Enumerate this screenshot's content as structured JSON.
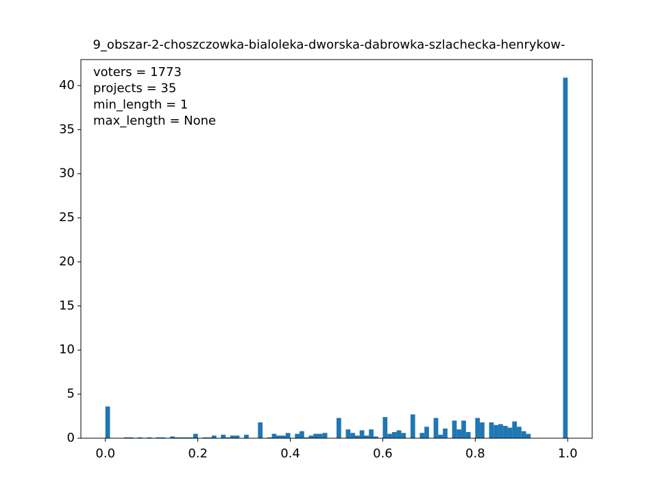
{
  "chart_data": {
    "type": "histogram",
    "title": "9_obszar-2-choszczowka-bialoleka-dworska-dabrowka-szlachecka-henrykow-",
    "annotations": [
      "voters = 1773",
      "projects = 35",
      "min_length = 1",
      "max_length = None"
    ],
    "color": "#1f77b4",
    "bins": [
      0,
      0.01,
      0.02,
      0.03,
      0.04,
      0.05,
      0.06,
      0.07,
      0.08,
      0.09,
      0.1,
      0.11,
      0.12,
      0.13,
      0.14,
      0.15,
      0.16,
      0.17,
      0.18,
      0.19,
      0.2,
      0.21,
      0.22,
      0.23,
      0.24,
      0.25,
      0.26,
      0.27,
      0.28,
      0.29,
      0.3,
      0.31,
      0.32,
      0.33,
      0.34,
      0.35,
      0.36,
      0.37,
      0.38,
      0.39,
      0.4,
      0.41,
      0.42,
      0.43,
      0.44,
      0.45,
      0.46,
      0.47,
      0.48,
      0.49,
      0.5,
      0.51,
      0.52,
      0.53,
      0.54,
      0.55,
      0.56,
      0.57,
      0.58,
      0.59,
      0.6,
      0.61,
      0.62,
      0.63,
      0.64,
      0.65,
      0.66,
      0.67,
      0.68,
      0.69,
      0.7,
      0.71,
      0.72,
      0.73,
      0.74,
      0.75,
      0.76,
      0.77,
      0.78,
      0.79,
      0.8,
      0.81,
      0.82,
      0.83,
      0.84,
      0.85,
      0.86,
      0.87,
      0.88,
      0.89,
      0.9,
      0.91,
      0.92,
      0.93,
      0.94,
      0.95,
      0.96,
      0.97,
      0.98,
      0.99,
      1
    ],
    "values": [
      3.6,
      0,
      0,
      0,
      0.1,
      0.1,
      0,
      0.1,
      0,
      0.1,
      0,
      0.1,
      0.1,
      0,
      0.2,
      0.1,
      0.1,
      0.1,
      0.1,
      0.5,
      0,
      0.1,
      0.1,
      0.3,
      0,
      0.4,
      0.1,
      0.3,
      0.3,
      0,
      0.4,
      0,
      0,
      1.8,
      0,
      0.1,
      0.5,
      0.3,
      0.3,
      0.6,
      0,
      0.5,
      0.8,
      0.1,
      0.3,
      0.5,
      0.5,
      0.6,
      0,
      0,
      2.3,
      0,
      1.0,
      0.6,
      0.3,
      0.9,
      0.3,
      1.0,
      0.2,
      0,
      2.4,
      0.5,
      0.7,
      0.9,
      0.6,
      0,
      2.7,
      0,
      0.6,
      1.3,
      0,
      2.3,
      0.4,
      1.1,
      0,
      2.0,
      1.0,
      2.0,
      0.7,
      0,
      2.3,
      1.8,
      0,
      1.8,
      1.5,
      1.6,
      1.4,
      1.2,
      1.9,
      1.3,
      0.8,
      0.5,
      0,
      0,
      0,
      0,
      0,
      0,
      0,
      40.9
    ],
    "xlim": [
      -0.053,
      1.053
    ],
    "ylim": [
      0,
      42.95
    ],
    "xticks": [
      {
        "value": 0,
        "label": "0.0"
      },
      0.2,
      0.4,
      0.6,
      0.8,
      {
        "value": 1,
        "label": "1.0"
      }
    ],
    "yticks": [
      0,
      5,
      10,
      15,
      20,
      25,
      30,
      35,
      40
    ]
  }
}
